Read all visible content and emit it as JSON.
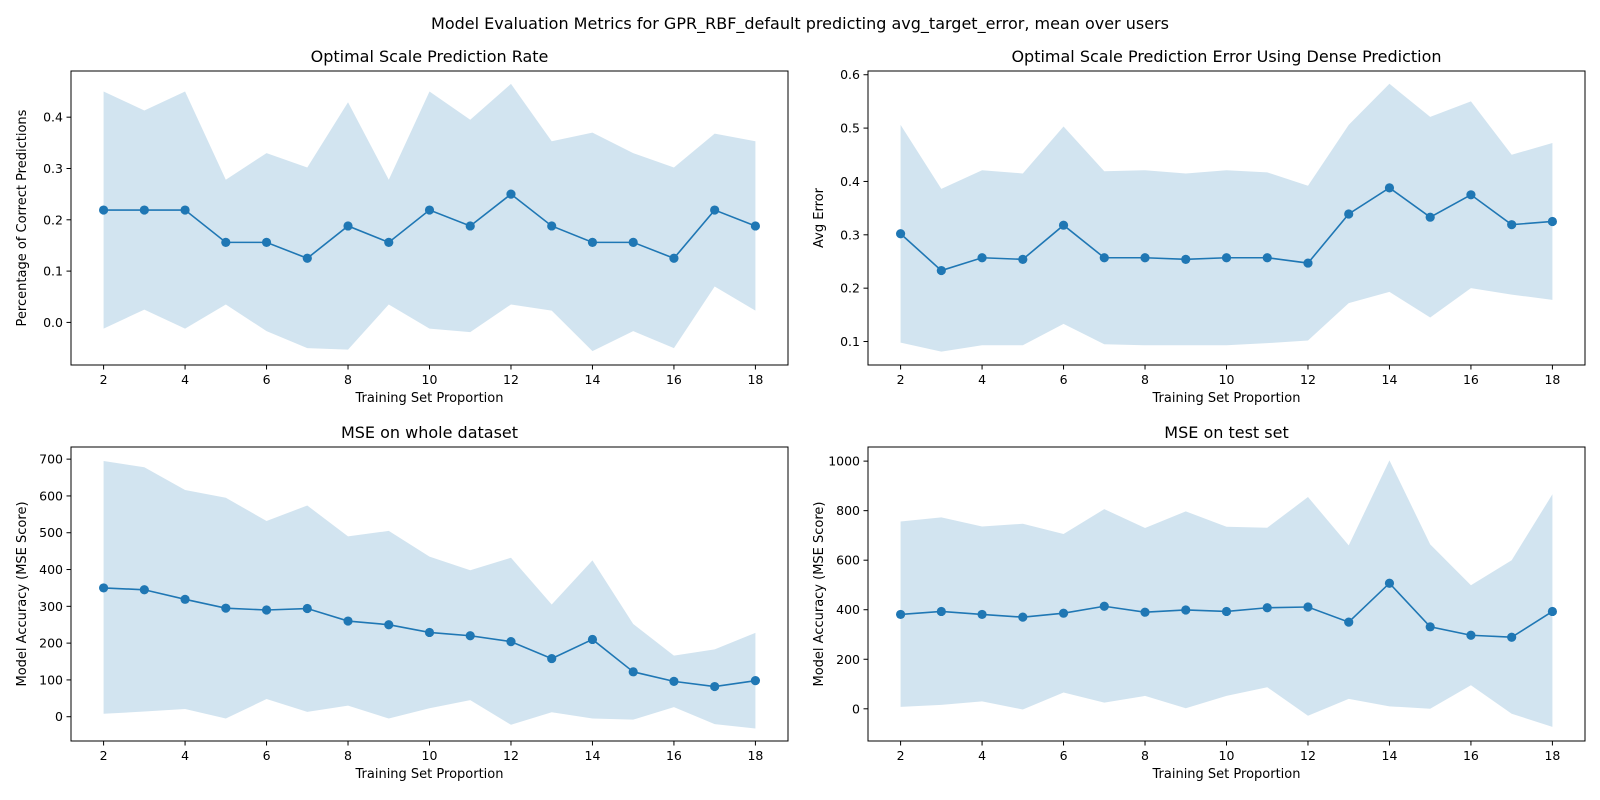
{
  "suptitle": "Model Evaluation Metrics for GPR_RBF_default predicting avg_target_error, mean over users",
  "colors": {
    "line": "#1f77b4",
    "band": "#1f77b4",
    "band_opacity": 0.2,
    "axes": "#000000"
  },
  "chart_data": [
    {
      "type": "line",
      "title": "Optimal Scale Prediction Rate",
      "xlabel": "Training Set Proportion",
      "ylabel": "Percentage of Correct Predictions",
      "grid": false,
      "xlim": [
        1.2,
        18.8
      ],
      "ylim": [
        -0.083,
        0.49
      ],
      "xticks": [
        2,
        4,
        6,
        8,
        10,
        12,
        14,
        16,
        18
      ],
      "yticks": [
        0.0,
        0.1,
        0.2,
        0.3,
        0.4
      ],
      "ytick_labels": [
        "0.0",
        "0.1",
        "0.2",
        "0.3",
        "0.4"
      ],
      "x": [
        2,
        3,
        4,
        5,
        6,
        7,
        8,
        9,
        10,
        11,
        12,
        13,
        14,
        15,
        16,
        17,
        18
      ],
      "series": [
        {
          "values": [
            0.219,
            0.219,
            0.219,
            0.156,
            0.156,
            0.125,
            0.188,
            0.156,
            0.219,
            0.188,
            0.25,
            0.188,
            0.156,
            0.156,
            0.125,
            0.219,
            0.188
          ],
          "lower": [
            -0.012,
            0.025,
            -0.012,
            0.035,
            -0.017,
            -0.05,
            -0.053,
            0.035,
            -0.012,
            -0.019,
            0.035,
            0.023,
            -0.056,
            -0.017,
            -0.05,
            0.07,
            0.023
          ],
          "upper": [
            0.45,
            0.413,
            0.45,
            0.278,
            0.33,
            0.302,
            0.429,
            0.278,
            0.45,
            0.395,
            0.465,
            0.353,
            0.37,
            0.33,
            0.302,
            0.368,
            0.353
          ]
        }
      ]
    },
    {
      "type": "line",
      "title": "Optimal Scale Prediction Error Using Dense Prediction",
      "xlabel": "Training Set Proportion",
      "ylabel": "Avg Error",
      "grid": false,
      "xlim": [
        1.2,
        18.8
      ],
      "ylim": [
        0.056,
        0.607
      ],
      "xticks": [
        2,
        4,
        6,
        8,
        10,
        12,
        14,
        16,
        18
      ],
      "yticks": [
        0.1,
        0.2,
        0.3,
        0.4,
        0.5,
        0.6
      ],
      "ytick_labels": [
        "0.1",
        "0.2",
        "0.3",
        "0.4",
        "0.5",
        "0.6"
      ],
      "x": [
        2,
        3,
        4,
        5,
        6,
        7,
        8,
        9,
        10,
        11,
        12,
        13,
        14,
        15,
        16,
        17,
        18
      ],
      "series": [
        {
          "values": [
            0.302,
            0.233,
            0.257,
            0.254,
            0.318,
            0.257,
            0.257,
            0.254,
            0.257,
            0.257,
            0.247,
            0.339,
            0.388,
            0.333,
            0.375,
            0.319,
            0.325
          ],
          "lower": [
            0.098,
            0.081,
            0.093,
            0.093,
            0.133,
            0.095,
            0.093,
            0.093,
            0.093,
            0.097,
            0.102,
            0.172,
            0.193,
            0.145,
            0.2,
            0.188,
            0.178
          ],
          "upper": [
            0.506,
            0.386,
            0.421,
            0.415,
            0.503,
            0.419,
            0.421,
            0.415,
            0.421,
            0.417,
            0.392,
            0.506,
            0.583,
            0.521,
            0.55,
            0.45,
            0.472
          ]
        }
      ]
    },
    {
      "type": "line",
      "title": "MSE on whole dataset",
      "xlabel": "Training Set Proportion",
      "ylabel": "Model Accuracy (MSE Score)",
      "grid": false,
      "xlim": [
        1.2,
        18.8
      ],
      "ylim": [
        -66,
        733
      ],
      "xticks": [
        2,
        4,
        6,
        8,
        10,
        12,
        14,
        16,
        18
      ],
      "yticks": [
        0,
        100,
        200,
        300,
        400,
        500,
        600,
        700
      ],
      "ytick_labels": [
        "0",
        "100",
        "200",
        "300",
        "400",
        "500",
        "600",
        "700"
      ],
      "x": [
        2,
        3,
        4,
        5,
        6,
        7,
        8,
        9,
        10,
        11,
        12,
        13,
        14,
        15,
        16,
        17,
        18
      ],
      "series": [
        {
          "values": [
            350,
            345,
            319,
            295,
            290,
            294,
            260,
            250,
            229,
            220,
            204,
            158,
            210,
            122,
            96,
            82,
            98
          ],
          "lower": [
            8,
            14,
            21,
            -5,
            48,
            13,
            30,
            -5,
            23,
            45,
            -22,
            12,
            -5,
            -8,
            26,
            -20,
            -32
          ],
          "upper": [
            695,
            678,
            616,
            595,
            532,
            574,
            490,
            505,
            435,
            398,
            432,
            305,
            425,
            252,
            166,
            183,
            228
          ]
        }
      ]
    },
    {
      "type": "line",
      "title": "MSE on test set",
      "xlabel": "Training Set Proportion",
      "ylabel": "Model Accuracy (MSE Score)",
      "grid": false,
      "xlim": [
        1.2,
        18.8
      ],
      "ylim": [
        -130,
        1057
      ],
      "xticks": [
        2,
        4,
        6,
        8,
        10,
        12,
        14,
        16,
        18
      ],
      "yticks": [
        0,
        200,
        400,
        600,
        800,
        1000
      ],
      "ytick_labels": [
        "0",
        "200",
        "400",
        "600",
        "800",
        "1000"
      ],
      "x": [
        2,
        3,
        4,
        5,
        6,
        7,
        8,
        9,
        10,
        11,
        12,
        13,
        14,
        15,
        16,
        17,
        18
      ],
      "series": [
        {
          "values": [
            381,
            393,
            381,
            370,
            386,
            414,
            390,
            399,
            393,
            408,
            411,
            350,
            507,
            331,
            297,
            289,
            393
          ],
          "lower": [
            8,
            16,
            30,
            -3,
            66,
            25,
            52,
            2,
            52,
            87,
            -28,
            40,
            10,
            0,
            95,
            -20,
            -73
          ],
          "upper": [
            756,
            773,
            736,
            747,
            706,
            806,
            730,
            797,
            735,
            731,
            855,
            660,
            1003,
            664,
            499,
            600,
            866
          ]
        }
      ]
    }
  ]
}
